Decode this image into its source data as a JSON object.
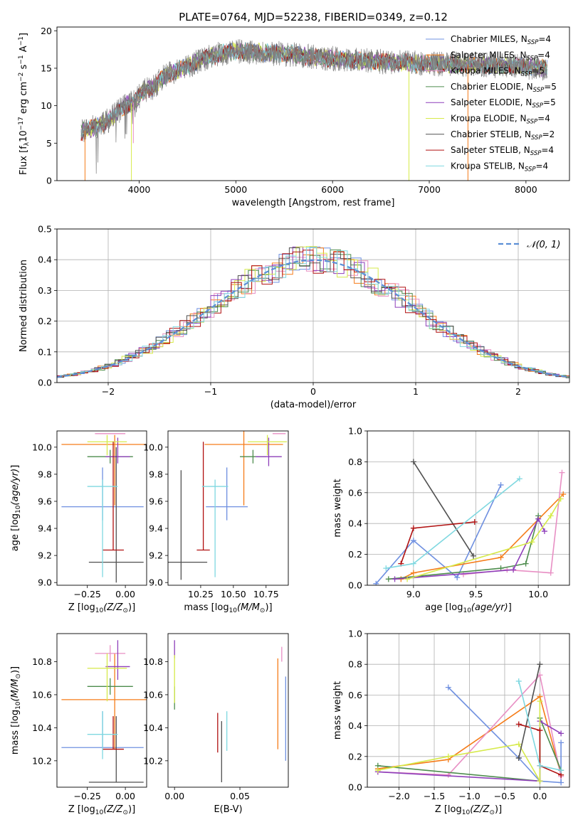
{
  "figure": {
    "title": "PLATE=0764, MJD=52238, FIBERID=0349, z=0.12"
  },
  "colors": {
    "spectrum": "#808080",
    "chabrier_miles": "#6f90e0",
    "salpeter_miles": "#f57c19",
    "kroupa_miles": "#e88fc4",
    "chabrier_elodie": "#4d8c4d",
    "salpeter_elodie": "#8e3fba",
    "kroupa_elodie": "#d6ea4a",
    "chabrier_stelib": "#505050",
    "salpeter_stelib": "#b01010",
    "kroupa_stelib": "#7fd8e0",
    "normal": "#5b8fd6"
  },
  "chart_data": [
    {
      "id": "spectrum",
      "type": "line",
      "xlabel": "wavelength [Angstrom, rest frame]",
      "ylabel": "Flux [f_λ10^-17 erg cm^-2 s^-1 A^-1]",
      "xlim": [
        3150,
        8450
      ],
      "ylim": [
        0,
        20.5
      ],
      "xticks": [
        4000,
        5000,
        6000,
        7000,
        8000
      ],
      "yticks": [
        0,
        5,
        10,
        15,
        20
      ],
      "legend_position": "right",
      "continuum": {
        "x": [
          3400,
          3550,
          3700,
          3850,
          3950,
          4050,
          4150,
          4250,
          4350,
          4450,
          4550,
          4650,
          4750,
          4850,
          5000,
          5200,
          5400,
          5600,
          5800,
          6000,
          6200,
          6400,
          6600,
          6800,
          7000,
          7200,
          7400,
          7600,
          7800,
          8000,
          8200
        ],
        "y": [
          6.5,
          7.2,
          8.2,
          10.0,
          10.5,
          12.0,
          12.5,
          13.8,
          14.5,
          15.0,
          15.5,
          16.2,
          16.5,
          17.0,
          17.2,
          17.2,
          17.0,
          16.8,
          16.5,
          16.3,
          16.1,
          16.0,
          15.8,
          15.7,
          15.6,
          15.6,
          15.5,
          15.4,
          15.3,
          15.2,
          15.0
        ]
      },
      "spikes": [
        {
          "x": 3440,
          "y": 0,
          "model": "salpeter_miles"
        },
        {
          "x": 3920,
          "y": 0,
          "model": "kroupa_elodie"
        },
        {
          "x": 3940,
          "y": 5.0,
          "model": "kroupa_miles"
        },
        {
          "x": 6790,
          "y": 0,
          "model": "kroupa_elodie"
        },
        {
          "x": 7400,
          "y": 0,
          "model": "salpeter_miles"
        }
      ],
      "models": [
        {
          "key": "chabrier_miles",
          "label": "Chabrier MILES, N",
          "sub": "SSP",
          "eq": "=4"
        },
        {
          "key": "salpeter_miles",
          "label": "Salpeter MILES, N",
          "sub": "SSP",
          "eq": "=4"
        },
        {
          "key": "kroupa_miles",
          "label": "Kroupa MILES, N",
          "sub": "SSP",
          "eq": "=5"
        },
        {
          "key": "chabrier_elodie",
          "label": "Chabrier ELODIE, N",
          "sub": "SSP",
          "eq": "=5"
        },
        {
          "key": "salpeter_elodie",
          "label": "Salpeter ELODIE, N",
          "sub": "SSP",
          "eq": "=5"
        },
        {
          "key": "kroupa_elodie",
          "label": "Kroupa ELODIE, N",
          "sub": "SSP",
          "eq": "=4"
        },
        {
          "key": "chabrier_stelib",
          "label": "Chabrier STELIB, N",
          "sub": "SSP",
          "eq": "=2"
        },
        {
          "key": "salpeter_stelib",
          "label": "Salpeter STELIB, N",
          "sub": "SSP",
          "eq": "=4"
        },
        {
          "key": "kroupa_stelib",
          "label": "Kroupa STELIB, N",
          "sub": "SSP",
          "eq": "=4"
        }
      ]
    },
    {
      "id": "residuals",
      "type": "histogram",
      "xlabel": "(data-model)/error",
      "ylabel": "Normed distribution",
      "xlim": [
        -2.5,
        2.5
      ],
      "ylim": [
        0,
        0.5
      ],
      "xticks": [
        -2,
        -1,
        0,
        1,
        2
      ],
      "yticks": [
        0.0,
        0.1,
        0.2,
        0.3,
        0.4,
        0.5
      ],
      "grid": true,
      "bin_width": 0.1,
      "legend": "𝒩(0, 1)",
      "legend_position": "top-right",
      "normal_curve": {
        "mean": 0,
        "sigma": 1
      }
    },
    {
      "id": "age_vs_Z",
      "type": "errorbar",
      "xlabel": "Z [log10(Z/Z⊙)]",
      "ylabel": "age [log10(age/yr)]",
      "xlim": [
        -0.45,
        0.14
      ],
      "ylim": [
        8.98,
        10.12
      ],
      "xticks": [
        -0.25,
        0.0
      ],
      "yticks": [
        9.0,
        9.2,
        9.4,
        9.6,
        9.8,
        10.0
      ],
      "points": [
        {
          "model": "chabrier_miles",
          "x": -0.15,
          "xerr": 0.27,
          "y": 9.56,
          "yerr_low": 0.1,
          "yerr_high": 0.29
        },
        {
          "model": "salpeter_miles",
          "x": -0.07,
          "xerr": 0.35,
          "y": 10.02,
          "yerr_low": 0.45,
          "yerr_high": 0.07
        },
        {
          "model": "kroupa_miles",
          "x": -0.1,
          "xerr": 0.1,
          "y": 10.1,
          "yerr_low": 0.0,
          "yerr_high": 0.0
        },
        {
          "model": "chabrier_elodie",
          "x": -0.1,
          "xerr": 0.15,
          "y": 9.93,
          "yerr_low": 0.05,
          "yerr_high": 0.05
        },
        {
          "model": "salpeter_elodie",
          "x": -0.05,
          "xerr": 0.08,
          "y": 9.93,
          "yerr_low": 0.05,
          "yerr_high": 0.14
        },
        {
          "model": "kroupa_elodie",
          "x": -0.12,
          "xerr": 0.13,
          "y": 10.04,
          "yerr_low": 0.1,
          "yerr_high": 0.05
        },
        {
          "model": "chabrier_stelib",
          "x": -0.06,
          "xerr": 0.18,
          "y": 9.15,
          "yerr_low": 0.15,
          "yerr_high": 0.85
        },
        {
          "model": "salpeter_stelib",
          "x": -0.08,
          "xerr": 0.07,
          "y": 9.24,
          "yerr_low": 0.0,
          "yerr_high": 0.8
        },
        {
          "model": "kroupa_stelib",
          "x": -0.15,
          "xerr": 0.1,
          "y": 9.71,
          "yerr_low": 0.67,
          "yerr_high": 0.05
        }
      ]
    },
    {
      "id": "age_vs_mass",
      "type": "errorbar",
      "xlabel": "mass [log10(M/M⊙)]",
      "ylabel": "",
      "xlim": [
        10.0,
        10.92
      ],
      "ylim": [
        8.98,
        10.12
      ],
      "xticks": [
        10.25,
        10.5,
        10.75
      ],
      "xtick_labels": [
        "10.25",
        "10.50",
        "10.75"
      ],
      "yticks": [
        9.0,
        9.2,
        9.4,
        9.6,
        9.8,
        10.0
      ],
      "points": [
        {
          "model": "chabrier_miles",
          "x": 10.45,
          "xerr": 0.16,
          "y": 9.56,
          "yerr_low": 0.1,
          "yerr_high": 0.29
        },
        {
          "model": "salpeter_miles",
          "x": 10.58,
          "xerr": 0.3,
          "y": 10.02,
          "yerr_low": 0.45,
          "yerr_high": 0.1
        },
        {
          "model": "kroupa_miles",
          "x": 10.85,
          "xerr": 0.05,
          "y": 10.1,
          "yerr_low": 0.0,
          "yerr_high": 0.0
        },
        {
          "model": "chabrier_elodie",
          "x": 10.65,
          "xerr": 0.1,
          "y": 9.93,
          "yerr_low": 0.05,
          "yerr_high": 0.05
        },
        {
          "model": "salpeter_elodie",
          "x": 10.77,
          "xerr": 0.1,
          "y": 9.93,
          "yerr_low": 0.07,
          "yerr_high": 0.14
        },
        {
          "model": "kroupa_elodie",
          "x": 10.76,
          "xerr": 0.15,
          "y": 10.04,
          "yerr_low": 0.1,
          "yerr_high": 0.05
        },
        {
          "model": "chabrier_stelib",
          "x": 10.1,
          "xerr": 0.2,
          "y": 9.15,
          "yerr_low": 0.13,
          "yerr_high": 0.68
        },
        {
          "model": "salpeter_stelib",
          "x": 10.27,
          "xerr": 0.05,
          "y": 9.24,
          "yerr_low": 0.0,
          "yerr_high": 0.8
        },
        {
          "model": "kroupa_stelib",
          "x": 10.36,
          "xerr": 0.1,
          "y": 9.71,
          "yerr_low": 0.67,
          "yerr_high": 0.05
        }
      ]
    },
    {
      "id": "weight_vs_age",
      "type": "line",
      "xlabel": "age [log10(age/yr)]",
      "ylabel": "mass weight",
      "xlim": [
        8.63,
        10.25
      ],
      "ylim": [
        0,
        1.0
      ],
      "xticks": [
        9.0,
        9.5,
        10.0
      ],
      "yticks": [
        0.0,
        0.2,
        0.4,
        0.6,
        0.8,
        1.0
      ],
      "grid": true,
      "series": [
        {
          "model": "chabrier_miles",
          "x": [
            8.7,
            9.0,
            9.35,
            9.7
          ],
          "y": [
            0.01,
            0.29,
            0.05,
            0.65
          ]
        },
        {
          "model": "salpeter_miles",
          "x": [
            8.9,
            9.0,
            9.7,
            10.2
          ],
          "y": [
            0.04,
            0.08,
            0.18,
            0.59
          ]
        },
        {
          "model": "kroupa_miles",
          "x": [
            9.4,
            9.75,
            10.1,
            10.19
          ],
          "y": [
            0.07,
            0.1,
            0.08,
            0.73
          ]
        },
        {
          "model": "chabrier_elodie",
          "x": [
            8.8,
            9.7,
            9.9,
            10.0
          ],
          "y": [
            0.04,
            0.11,
            0.14,
            0.45
          ]
        },
        {
          "model": "salpeter_elodie",
          "x": [
            8.85,
            9.8,
            10.0,
            10.05
          ],
          "y": [
            0.04,
            0.1,
            0.43,
            0.35
          ]
        },
        {
          "model": "kroupa_elodie",
          "x": [
            8.95,
            9.95,
            10.1,
            10.18
          ],
          "y": [
            0.04,
            0.28,
            0.45,
            0.56
          ]
        },
        {
          "model": "chabrier_stelib",
          "x": [
            9.0,
            9.48
          ],
          "y": [
            0.8,
            0.19
          ]
        },
        {
          "model": "salpeter_stelib",
          "x": [
            8.9,
            9.0,
            9.49
          ],
          "y": [
            0.14,
            0.37,
            0.41
          ]
        },
        {
          "model": "kroupa_stelib",
          "x": [
            8.78,
            9.0,
            9.85
          ],
          "y": [
            0.11,
            0.14,
            0.69
          ]
        }
      ]
    },
    {
      "id": "mass_vs_Z",
      "type": "errorbar",
      "xlabel": "Z [log10(Z/Z⊙)]",
      "ylabel": "mass [log10(M/M⊙)]",
      "xlim": [
        -0.45,
        0.14
      ],
      "ylim": [
        10.04,
        10.97
      ],
      "xticks": [
        -0.25,
        0.0
      ],
      "yticks": [
        10.2,
        10.4,
        10.6,
        10.8
      ],
      "points": [
        {
          "model": "chabrier_miles",
          "x": -0.15,
          "xerr": 0.27,
          "y": 10.28,
          "yerr_low": 0.0,
          "yerr_high": 0.22
        },
        {
          "model": "salpeter_miles",
          "x": -0.07,
          "xerr": 0.35,
          "y": 10.57,
          "yerr_low": 0.3,
          "yerr_high": 0.28
        },
        {
          "model": "kroupa_miles",
          "x": -0.1,
          "xerr": 0.1,
          "y": 10.85,
          "yerr_low": 0.05,
          "yerr_high": 0.05
        },
        {
          "model": "chabrier_elodie",
          "x": -0.1,
          "xerr": 0.15,
          "y": 10.65,
          "yerr_low": 0.05,
          "yerr_high": 0.05
        },
        {
          "model": "salpeter_elodie",
          "x": -0.05,
          "xerr": 0.08,
          "y": 10.77,
          "yerr_low": 0.08,
          "yerr_high": 0.16
        },
        {
          "model": "kroupa_elodie",
          "x": -0.12,
          "xerr": 0.13,
          "y": 10.76,
          "yerr_low": 0.2,
          "yerr_high": 0.09
        },
        {
          "model": "chabrier_stelib",
          "x": -0.06,
          "xerr": 0.18,
          "y": 10.07,
          "yerr_low": 0.0,
          "yerr_high": 0.4
        },
        {
          "model": "salpeter_stelib",
          "x": -0.08,
          "xerr": 0.07,
          "y": 10.27,
          "yerr_low": 0.0,
          "yerr_high": 0.2
        },
        {
          "model": "kroupa_stelib",
          "x": -0.15,
          "xerr": 0.1,
          "y": 10.36,
          "yerr_low": 0.15,
          "yerr_high": 0.14
        }
      ]
    },
    {
      "id": "mass_vs_ebv",
      "type": "errorbar",
      "xlabel": "E(B-V)",
      "ylabel": "",
      "xlim": [
        -0.005,
        0.087
      ],
      "ylim": [
        10.04,
        10.97
      ],
      "xticks": [
        0.0,
        0.05
      ],
      "xtick_labels": [
        "0.00",
        "0.05"
      ],
      "yticks": [
        10.2,
        10.4,
        10.6,
        10.8
      ],
      "points": [
        {
          "model": "chabrier_miles",
          "x": 0.085,
          "xerr": 0.0,
          "y": 10.45,
          "yerr_low": 0.25,
          "yerr_high": 0.26
        },
        {
          "model": "salpeter_miles",
          "x": 0.079,
          "xerr": 0.0,
          "y": 10.55,
          "yerr_low": 0.28,
          "yerr_high": 0.27
        },
        {
          "model": "kroupa_miles",
          "x": 0.082,
          "xerr": 0.0,
          "y": 10.85,
          "yerr_low": 0.05,
          "yerr_high": 0.04
        },
        {
          "model": "chabrier_elodie",
          "x": 0.0,
          "xerr": 0.0,
          "y": 10.6,
          "yerr_low": 0.09,
          "yerr_high": 0.05
        },
        {
          "model": "salpeter_elodie",
          "x": 0.0,
          "xerr": 0.0,
          "y": 10.86,
          "yerr_low": 0.04,
          "yerr_high": 0.07
        },
        {
          "model": "kroupa_elodie",
          "x": 0.0,
          "xerr": 0.0,
          "y": 10.7,
          "yerr_low": 0.15,
          "yerr_high": 0.14
        },
        {
          "model": "chabrier_stelib",
          "x": 0.036,
          "xerr": 0.0,
          "y": 10.25,
          "yerr_low": 0.18,
          "yerr_high": 0.19
        },
        {
          "model": "salpeter_stelib",
          "x": 0.033,
          "xerr": 0.0,
          "y": 10.37,
          "yerr_low": 0.12,
          "yerr_high": 0.12
        },
        {
          "model": "kroupa_stelib",
          "x": 0.04,
          "xerr": 0.0,
          "y": 10.38,
          "yerr_low": 0.12,
          "yerr_high": 0.12
        }
      ]
    },
    {
      "id": "weight_vs_Z",
      "type": "line",
      "xlabel": "Z [log10(Z/Z⊙)]",
      "ylabel": "mass weight",
      "xlim": [
        -2.45,
        0.42
      ],
      "ylim": [
        0,
        1.0
      ],
      "xticks": [
        -2.0,
        -1.5,
        -1.0,
        -0.5,
        0.0
      ],
      "yticks": [
        0.0,
        0.2,
        0.4,
        0.6,
        0.8,
        1.0
      ],
      "grid": true,
      "series": [
        {
          "model": "chabrier_miles",
          "x": [
            -1.3,
            -0.3,
            0.0,
            0.3,
            0.3
          ],
          "y": [
            0.65,
            0.19,
            0.04,
            0.03,
            0.29
          ]
        },
        {
          "model": "salpeter_miles",
          "x": [
            -2.3,
            -1.3,
            0.0,
            0.3
          ],
          "y": [
            0.12,
            0.18,
            0.59,
            0.08
          ]
        },
        {
          "model": "kroupa_miles",
          "x": [
            -2.3,
            -1.3,
            0.0,
            0.3
          ],
          "y": [
            0.1,
            0.08,
            0.73,
            0.07
          ]
        },
        {
          "model": "chabrier_elodie",
          "x": [
            -2.3,
            0.0,
            0.0,
            0.3
          ],
          "y": [
            0.14,
            0.04,
            0.45,
            0.11
          ]
        },
        {
          "model": "salpeter_elodie",
          "x": [
            -2.3,
            0.0,
            0.0,
            0.3
          ],
          "y": [
            0.1,
            0.04,
            0.43,
            0.35
          ]
        },
        {
          "model": "kroupa_elodie",
          "x": [
            -2.3,
            -1.3,
            -0.3,
            0.0,
            0.0
          ],
          "y": [
            0.11,
            0.2,
            0.28,
            0.04,
            0.56
          ]
        },
        {
          "model": "chabrier_stelib",
          "x": [
            -0.3,
            0.0
          ],
          "y": [
            0.19,
            0.8
          ]
        },
        {
          "model": "salpeter_stelib",
          "x": [
            -0.3,
            0.0,
            0.0,
            0.3
          ],
          "y": [
            0.41,
            0.37,
            0.14,
            0.08
          ]
        },
        {
          "model": "kroupa_stelib",
          "x": [
            -0.3,
            0.0,
            0.3
          ],
          "y": [
            0.69,
            0.14,
            0.11
          ]
        }
      ]
    }
  ]
}
